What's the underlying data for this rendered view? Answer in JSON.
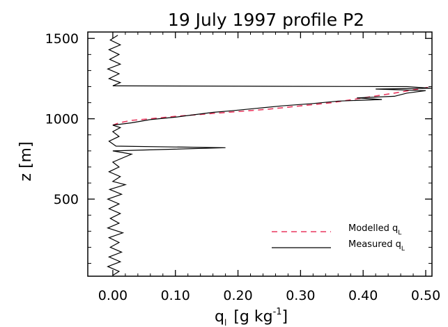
{
  "chart_data": {
    "type": "line",
    "title": "19 July 1997 profile P2",
    "xlabel": {
      "base": "q",
      "subscript": "l",
      "bracket_open": "[g kg",
      "superscript": "-1",
      "bracket_close": "]"
    },
    "ylabel": "z [m]",
    "xlim": [
      -0.04,
      0.51
    ],
    "ylim": [
      20,
      1540
    ],
    "x_ticks": [
      0.0,
      0.1,
      0.2,
      0.3,
      0.4,
      0.5
    ],
    "x_tick_labels": [
      "0.00",
      "0.10",
      "0.20",
      "0.30",
      "0.40",
      "0.50"
    ],
    "y_ticks": [
      500,
      1000,
      1500
    ],
    "y_tick_labels": [
      "500",
      "1000",
      "1500"
    ],
    "grid": false,
    "legend_position": "bottom-right",
    "series": [
      {
        "name": "Modelled q_L",
        "label_text": "Modelled q",
        "label_sub": "L",
        "style": "dashed",
        "color": "#e8375e",
        "points": [
          [
            0.0,
            960
          ],
          [
            0.01,
            975
          ],
          [
            0.03,
            990
          ],
          [
            0.06,
            1000
          ],
          [
            0.1,
            1015
          ],
          [
            0.15,
            1030
          ],
          [
            0.2,
            1045
          ],
          [
            0.25,
            1060
          ],
          [
            0.3,
            1080
          ],
          [
            0.35,
            1100
          ],
          [
            0.4,
            1130
          ],
          [
            0.45,
            1160
          ],
          [
            0.51,
            1200
          ]
        ]
      },
      {
        "name": "Measured q_L",
        "label_text": "Measured q",
        "label_sub": "L",
        "style": "solid",
        "color": "#000000",
        "points": [
          [
            0.0,
            25
          ],
          [
            0.01,
            50
          ],
          [
            -0.008,
            80
          ],
          [
            0.012,
            110
          ],
          [
            -0.006,
            140
          ],
          [
            0.014,
            170
          ],
          [
            -0.004,
            200
          ],
          [
            0.01,
            230
          ],
          [
            -0.006,
            260
          ],
          [
            0.016,
            290
          ],
          [
            -0.008,
            320
          ],
          [
            0.01,
            350
          ],
          [
            -0.004,
            380
          ],
          [
            0.012,
            410
          ],
          [
            -0.006,
            440
          ],
          [
            0.01,
            470
          ],
          [
            -0.008,
            500
          ],
          [
            0.014,
            530
          ],
          [
            -0.005,
            560
          ],
          [
            0.02,
            590
          ],
          [
            0.0,
            610
          ],
          [
            0.012,
            640
          ],
          [
            -0.006,
            670
          ],
          [
            0.01,
            700
          ],
          [
            0.0,
            730
          ],
          [
            0.03,
            780
          ],
          [
            0.0,
            800
          ],
          [
            0.18,
            820
          ],
          [
            0.005,
            830
          ],
          [
            -0.006,
            860
          ],
          [
            0.01,
            890
          ],
          [
            0.0,
            920
          ],
          [
            0.012,
            945
          ],
          [
            0.0,
            960
          ],
          [
            0.03,
            975
          ],
          [
            0.06,
            995
          ],
          [
            0.1,
            1010
          ],
          [
            0.13,
            1025
          ],
          [
            0.16,
            1040
          ],
          [
            0.19,
            1050
          ],
          [
            0.23,
            1065
          ],
          [
            0.27,
            1080
          ],
          [
            0.32,
            1095
          ],
          [
            0.36,
            1110
          ],
          [
            0.43,
            1120
          ],
          [
            0.39,
            1130
          ],
          [
            0.45,
            1140
          ],
          [
            0.47,
            1160
          ],
          [
            0.5,
            1175
          ],
          [
            0.42,
            1185
          ],
          [
            0.51,
            1190
          ],
          [
            0.47,
            1200
          ],
          [
            0.0,
            1205
          ],
          [
            0.012,
            1225
          ],
          [
            -0.006,
            1250
          ],
          [
            0.01,
            1280
          ],
          [
            -0.008,
            1310
          ],
          [
            0.012,
            1340
          ],
          [
            -0.005,
            1370
          ],
          [
            0.01,
            1400
          ],
          [
            -0.006,
            1430
          ],
          [
            0.012,
            1460
          ],
          [
            -0.004,
            1490
          ],
          [
            0.008,
            1520
          ]
        ]
      }
    ]
  }
}
